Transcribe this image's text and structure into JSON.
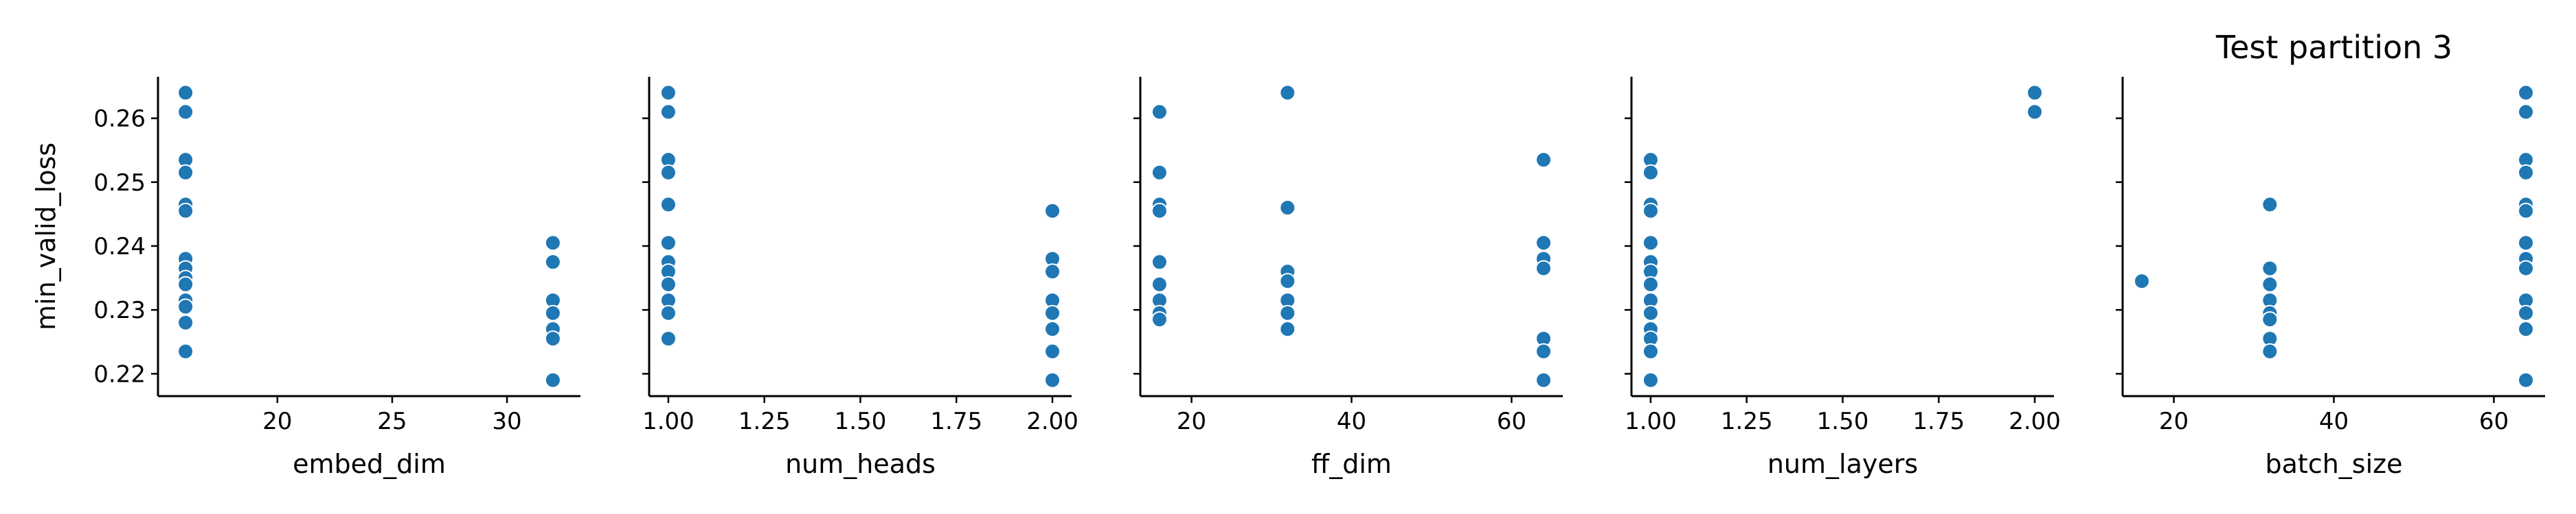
{
  "chart_data": {
    "type": "scatter",
    "title": "Test partition 3",
    "ylabel": "min_valid_loss",
    "ylim": [
      0.2165,
      0.2665
    ],
    "yticks": [
      0.22,
      0.23,
      0.24,
      0.25,
      0.26
    ],
    "ytick_labels": [
      "0.22",
      "0.23",
      "0.24",
      "0.25",
      "0.26"
    ],
    "point_color": "#1f77b4",
    "grid": false,
    "panels": [
      {
        "xlabel": "embed_dim",
        "xlim": [
          14.8,
          33.2
        ],
        "xticks": [
          20,
          25,
          30
        ],
        "xtick_labels": [
          "20",
          "25",
          "30"
        ],
        "points": [
          [
            16,
            0.264
          ],
          [
            16,
            0.261
          ],
          [
            16,
            0.2535
          ],
          [
            16,
            0.2515
          ],
          [
            16,
            0.2465
          ],
          [
            16,
            0.2455
          ],
          [
            16,
            0.238
          ],
          [
            16,
            0.2365
          ],
          [
            16,
            0.235
          ],
          [
            16,
            0.234
          ],
          [
            16,
            0.2315
          ],
          [
            16,
            0.2305
          ],
          [
            16,
            0.228
          ],
          [
            16,
            0.2235
          ],
          [
            32,
            0.2405
          ],
          [
            32,
            0.2375
          ],
          [
            32,
            0.2315
          ],
          [
            32,
            0.2295
          ],
          [
            32,
            0.227
          ],
          [
            32,
            0.2255
          ],
          [
            32,
            0.219
          ]
        ]
      },
      {
        "xlabel": "num_heads",
        "xlim": [
          0.95,
          2.05
        ],
        "xticks": [
          1.0,
          1.25,
          1.5,
          1.75,
          2.0
        ],
        "xtick_labels": [
          "1.00",
          "1.25",
          "1.50",
          "1.75",
          "2.00"
        ],
        "points": [
          [
            1,
            0.264
          ],
          [
            1,
            0.261
          ],
          [
            1,
            0.2535
          ],
          [
            1,
            0.2515
          ],
          [
            1,
            0.2465
          ],
          [
            1,
            0.2405
          ],
          [
            1,
            0.2375
          ],
          [
            1,
            0.236
          ],
          [
            1,
            0.234
          ],
          [
            1,
            0.2315
          ],
          [
            1,
            0.2295
          ],
          [
            1,
            0.2255
          ],
          [
            2,
            0.2455
          ],
          [
            2,
            0.238
          ],
          [
            2,
            0.236
          ],
          [
            2,
            0.2315
          ],
          [
            2,
            0.2295
          ],
          [
            2,
            0.227
          ],
          [
            2,
            0.2235
          ],
          [
            2,
            0.219
          ]
        ]
      },
      {
        "xlabel": "ff_dim",
        "xlim": [
          13.6,
          66.4
        ],
        "xticks": [
          20,
          40,
          60
        ],
        "xtick_labels": [
          "20",
          "40",
          "60"
        ],
        "points": [
          [
            16,
            0.261
          ],
          [
            16,
            0.2515
          ],
          [
            16,
            0.2465
          ],
          [
            16,
            0.2455
          ],
          [
            16,
            0.2375
          ],
          [
            16,
            0.234
          ],
          [
            16,
            0.2315
          ],
          [
            16,
            0.2295
          ],
          [
            16,
            0.2285
          ],
          [
            32,
            0.264
          ],
          [
            32,
            0.246
          ],
          [
            32,
            0.236
          ],
          [
            32,
            0.2345
          ],
          [
            32,
            0.2315
          ],
          [
            32,
            0.2295
          ],
          [
            32,
            0.227
          ],
          [
            64,
            0.2535
          ],
          [
            64,
            0.2405
          ],
          [
            64,
            0.238
          ],
          [
            64,
            0.2365
          ],
          [
            64,
            0.2255
          ],
          [
            64,
            0.2235
          ],
          [
            64,
            0.219
          ]
        ]
      },
      {
        "xlabel": "num_layers",
        "xlim": [
          0.95,
          2.05
        ],
        "xticks": [
          1.0,
          1.25,
          1.5,
          1.75,
          2.0
        ],
        "xtick_labels": [
          "1.00",
          "1.25",
          "1.50",
          "1.75",
          "2.00"
        ],
        "points": [
          [
            1,
            0.2535
          ],
          [
            1,
            0.2515
          ],
          [
            1,
            0.2465
          ],
          [
            1,
            0.2455
          ],
          [
            1,
            0.2405
          ],
          [
            1,
            0.2375
          ],
          [
            1,
            0.236
          ],
          [
            1,
            0.234
          ],
          [
            1,
            0.2315
          ],
          [
            1,
            0.2295
          ],
          [
            1,
            0.227
          ],
          [
            1,
            0.2255
          ],
          [
            1,
            0.2235
          ],
          [
            1,
            0.219
          ],
          [
            2,
            0.264
          ],
          [
            2,
            0.261
          ]
        ]
      },
      {
        "xlabel": "batch_size",
        "xlim": [
          13.6,
          66.4
        ],
        "xticks": [
          20,
          40,
          60
        ],
        "xtick_labels": [
          "20",
          "40",
          "60"
        ],
        "points": [
          [
            16,
            0.2345
          ],
          [
            32,
            0.2465
          ],
          [
            32,
            0.2365
          ],
          [
            32,
            0.234
          ],
          [
            32,
            0.2315
          ],
          [
            32,
            0.2295
          ],
          [
            32,
            0.2285
          ],
          [
            32,
            0.2255
          ],
          [
            32,
            0.2235
          ],
          [
            64,
            0.264
          ],
          [
            64,
            0.261
          ],
          [
            64,
            0.2535
          ],
          [
            64,
            0.2515
          ],
          [
            64,
            0.2465
          ],
          [
            64,
            0.2455
          ],
          [
            64,
            0.2405
          ],
          [
            64,
            0.238
          ],
          [
            64,
            0.2365
          ],
          [
            64,
            0.2315
          ],
          [
            64,
            0.2295
          ],
          [
            64,
            0.227
          ],
          [
            64,
            0.219
          ]
        ]
      }
    ]
  }
}
